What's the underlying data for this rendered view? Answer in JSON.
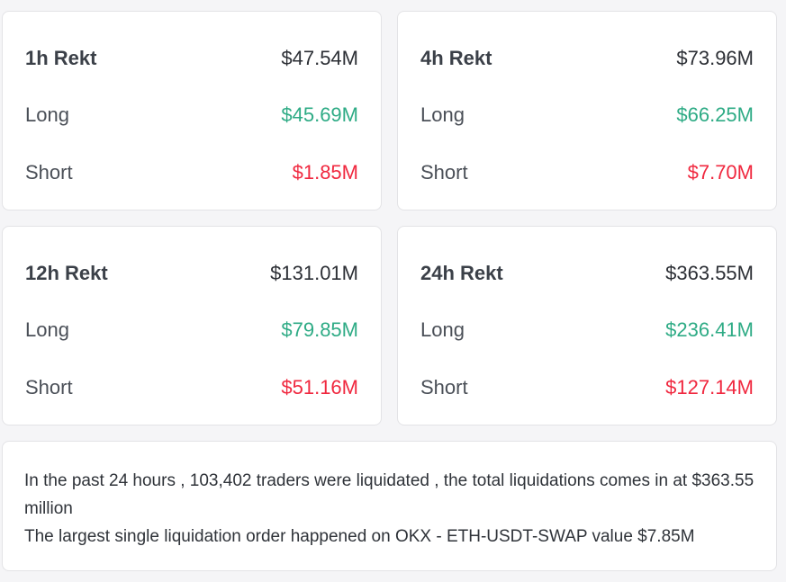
{
  "cards": [
    {
      "title": "1h Rekt",
      "total": "$47.54M",
      "long_label": "Long",
      "long": "$45.69M",
      "short_label": "Short",
      "short": "$1.85M"
    },
    {
      "title": "4h Rekt",
      "total": "$73.96M",
      "long_label": "Long",
      "long": "$66.25M",
      "short_label": "Short",
      "short": "$7.70M"
    },
    {
      "title": "12h Rekt",
      "total": "$131.01M",
      "long_label": "Long",
      "long": "$79.85M",
      "short_label": "Short",
      "short": "$51.16M"
    },
    {
      "title": "24h Rekt",
      "total": "$363.55M",
      "long_label": "Long",
      "long": "$236.41M",
      "short_label": "Short",
      "short": "$127.14M"
    }
  ],
  "summary": {
    "line1": "In the past 24 hours , 103,402 traders were liquidated , the total liquidations comes in at $363.55 million",
    "line2": "The largest single liquidation order happened on OKX - ETH-USDT-SWAP value $7.85M"
  },
  "colors": {
    "long": "#2eab85",
    "short": "#f0283f"
  }
}
